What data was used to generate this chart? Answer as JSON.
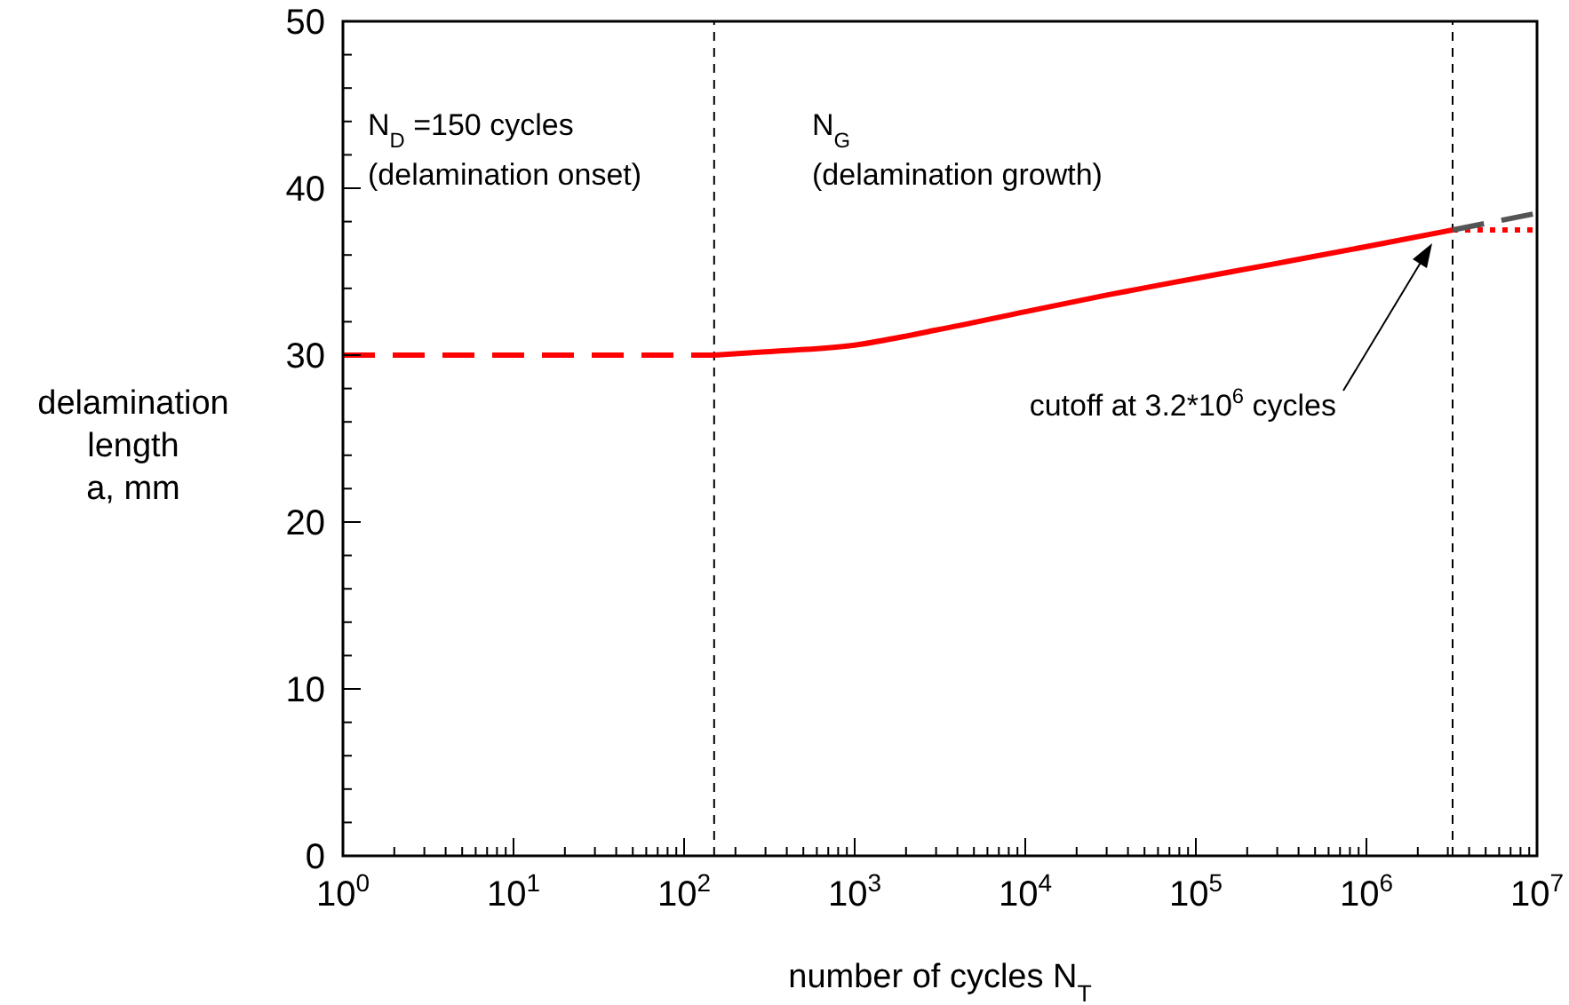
{
  "chart_data": {
    "type": "line",
    "xlabel": "number of cycles N$_{T}$",
    "ylabel": "delamination\nlength\na, mm",
    "log": "x",
    "xlim": [
      1,
      10000000
    ],
    "ylim": [
      0,
      50
    ],
    "xticks": [
      {
        "value": 1,
        "label": "10$^{0}$"
      },
      {
        "value": 10,
        "label": "10$^{1}$"
      },
      {
        "value": 100,
        "label": "10$^{2}$"
      },
      {
        "value": 1000,
        "label": "10$^{3}$"
      },
      {
        "value": 10000,
        "label": "10$^{4}$"
      },
      {
        "value": 100000,
        "label": "10$^{5}$"
      },
      {
        "value": 1000000,
        "label": "10$^{6}$"
      },
      {
        "value": 10000000,
        "label": "10$^{7}$"
      }
    ],
    "yticks": [
      0,
      10,
      20,
      30,
      40,
      50
    ],
    "series": [
      {
        "color": "#ff0000",
        "line_style": "dashed",
        "x": [
          1,
          150
        ],
        "values": [
          30,
          30
        ]
      },
      {
        "color": "#ff0000",
        "line_style": "solid",
        "x": [
          150,
          300,
          1000,
          3000,
          10000,
          30000,
          100000,
          300000,
          1000000,
          3200000
        ],
        "values": [
          30,
          30.2,
          30.6,
          31.5,
          32.6,
          33.6,
          34.6,
          35.5,
          36.5,
          37.5
        ]
      },
      {
        "color": "#ff0000",
        "line_style": "dotted",
        "x": [
          3200000,
          10000000
        ],
        "values": [
          37.5,
          37.5
        ]
      },
      {
        "color": "#555555",
        "line_style": "dashed",
        "x": [
          3200000,
          10000000
        ],
        "values": [
          37.5,
          38.5
        ]
      }
    ],
    "ref_lines": [
      {
        "axis": "x",
        "value": 150,
        "color": "#000000",
        "line_style": "dashed"
      },
      {
        "axis": "x",
        "value": 3200000,
        "color": "#000000",
        "line_style": "dashed"
      }
    ],
    "annotations": [
      "N$_{D}$ =150 cycles",
      "(delamination onset)",
      "N$_{G}$",
      "(delamination growth)",
      "cutoff at 3.2*10$^{6}$ cycles"
    ]
  }
}
